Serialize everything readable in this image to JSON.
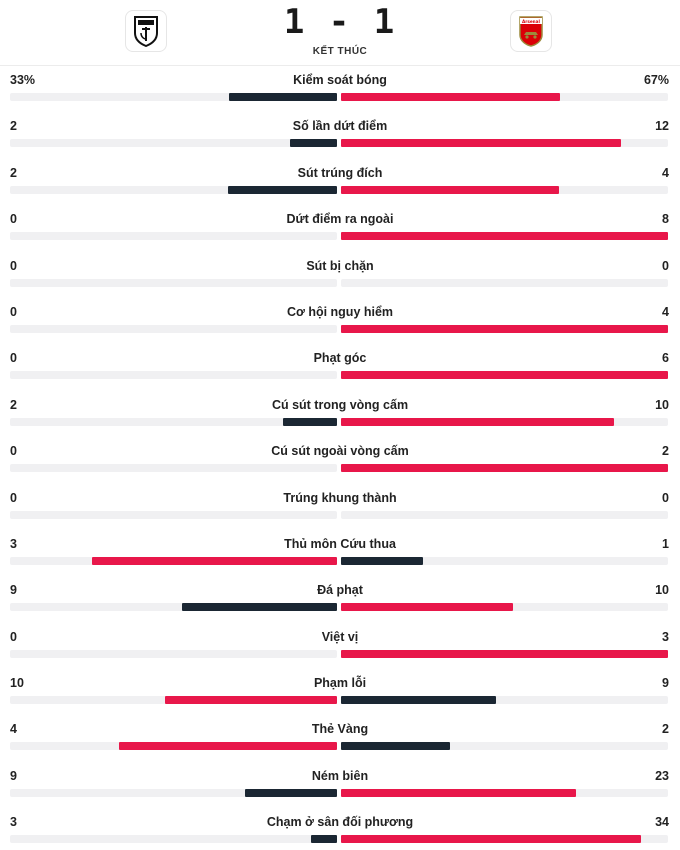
{
  "match": {
    "home_team": "Fulham",
    "away_team": "Arsenal",
    "home_crest_icon": "fulham-crest-icon",
    "away_crest_icon": "arsenal-crest-icon",
    "away_crest_text": "Arsenal",
    "score": "1 - 1",
    "status": "KẾT THÚC"
  },
  "colors": {
    "leading": "#e8174a",
    "trailing": "#1b2733",
    "track": "#f0f0f2"
  },
  "stats": [
    {
      "label": "Kiểm soát bóng",
      "home": "33%",
      "away": "67%",
      "home_value": 33,
      "away_value": 67
    },
    {
      "label": "Số lần dứt điểm",
      "home": "2",
      "away": "12",
      "home_value": 2,
      "away_value": 12
    },
    {
      "label": "Sút trúng đích",
      "home": "2",
      "away": "4",
      "home_value": 2,
      "away_value": 4
    },
    {
      "label": "Dứt điểm ra ngoài",
      "home": "0",
      "away": "8",
      "home_value": 0,
      "away_value": 8
    },
    {
      "label": "Sút bị chặn",
      "home": "0",
      "away": "0",
      "home_value": 0,
      "away_value": 0
    },
    {
      "label": "Cơ hội nguy hiểm",
      "home": "0",
      "away": "4",
      "home_value": 0,
      "away_value": 4
    },
    {
      "label": "Phạt góc",
      "home": "0",
      "away": "6",
      "home_value": 0,
      "away_value": 6
    },
    {
      "label": "Cú sút trong vòng cấm",
      "home": "2",
      "away": "10",
      "home_value": 2,
      "away_value": 10
    },
    {
      "label": "Cú sút ngoài vòng cấm",
      "home": "0",
      "away": "2",
      "home_value": 0,
      "away_value": 2
    },
    {
      "label": "Trúng khung thành",
      "home": "0",
      "away": "0",
      "home_value": 0,
      "away_value": 0
    },
    {
      "label": "Thủ môn Cứu thua",
      "home": "3",
      "away": "1",
      "home_value": 3,
      "away_value": 1
    },
    {
      "label": "Đá phạt",
      "home": "9",
      "away": "10",
      "home_value": 9,
      "away_value": 10
    },
    {
      "label": "Việt vị",
      "home": "0",
      "away": "3",
      "home_value": 0,
      "away_value": 3
    },
    {
      "label": "Phạm lỗi",
      "home": "10",
      "away": "9",
      "home_value": 10,
      "away_value": 9
    },
    {
      "label": "Thẻ Vàng",
      "home": "4",
      "away": "2",
      "home_value": 4,
      "away_value": 2
    },
    {
      "label": "Ném biên",
      "home": "9",
      "away": "23",
      "home_value": 9,
      "away_value": 23
    },
    {
      "label": "Chạm ở sân đối phương",
      "home": "3",
      "away": "34",
      "home_value": 3,
      "away_value": 34
    }
  ]
}
